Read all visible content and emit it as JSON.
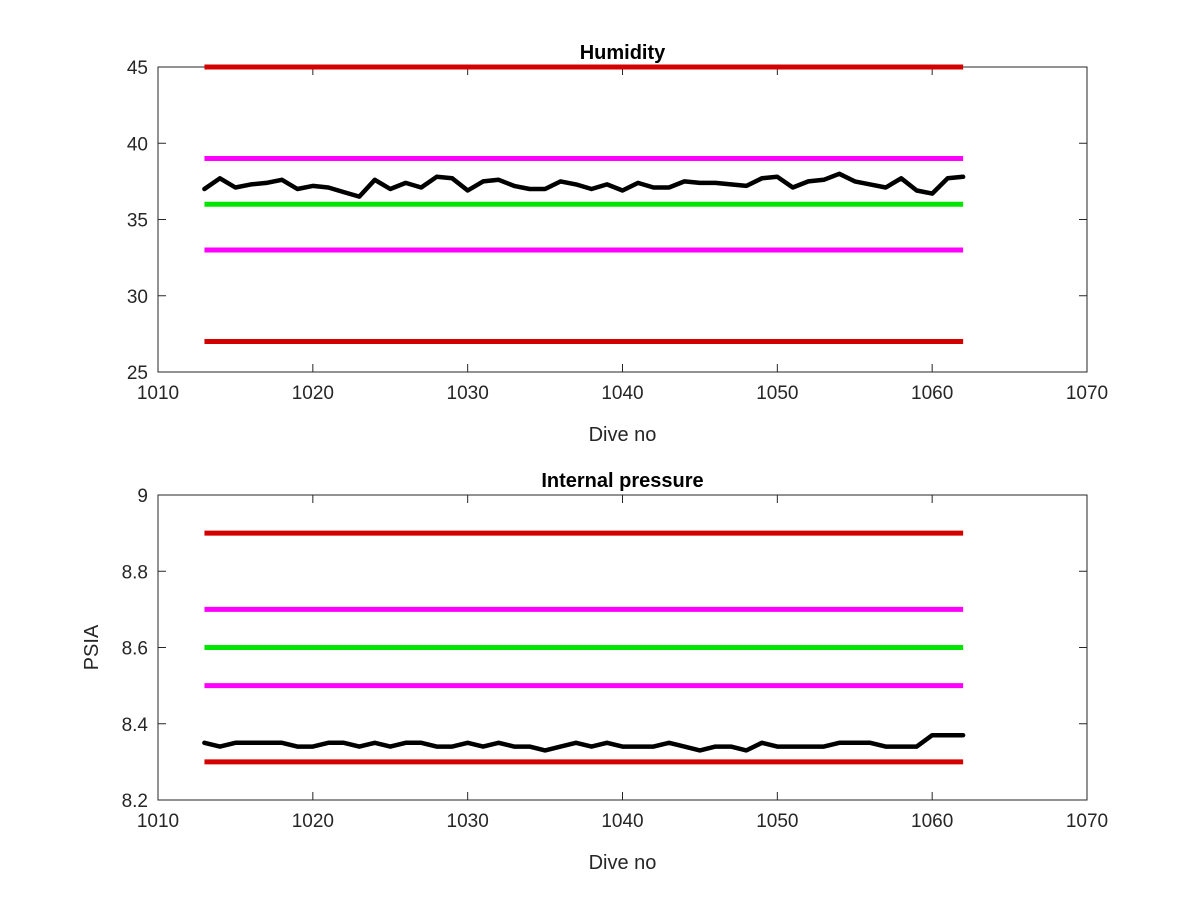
{
  "chart_data": [
    {
      "type": "line",
      "title": "Humidity",
      "xlabel": "Dive no",
      "ylabel": "",
      "xlim": [
        1010,
        1070
      ],
      "ylim": [
        25,
        45
      ],
      "xticks": [
        "1010",
        "1020",
        "1030",
        "1040",
        "1050",
        "1060",
        "1070"
      ],
      "yticks": [
        "25",
        "30",
        "35",
        "40",
        "45"
      ],
      "grid": false,
      "thresholds": [
        {
          "value": 45,
          "color": "#d40000",
          "x": [
            1013,
            1062
          ]
        },
        {
          "value": 39,
          "color": "#ff00ff",
          "x": [
            1013,
            1062
          ]
        },
        {
          "value": 36,
          "color": "#00e600",
          "x": [
            1013,
            1062
          ]
        },
        {
          "value": 33,
          "color": "#ff00ff",
          "x": [
            1013,
            1062
          ]
        },
        {
          "value": 27,
          "color": "#d40000",
          "x": [
            1013,
            1062
          ]
        }
      ],
      "series": [
        {
          "color": "#000000",
          "x": [
            1013,
            1014,
            1015,
            1016,
            1017,
            1018,
            1019,
            1020,
            1021,
            1022,
            1023,
            1024,
            1025,
            1026,
            1027,
            1028,
            1029,
            1030,
            1031,
            1032,
            1033,
            1034,
            1035,
            1036,
            1037,
            1038,
            1039,
            1040,
            1041,
            1042,
            1043,
            1044,
            1045,
            1046,
            1047,
            1048,
            1049,
            1050,
            1051,
            1052,
            1053,
            1054,
            1055,
            1056,
            1057,
            1058,
            1059,
            1060,
            1061,
            1062
          ],
          "values": [
            37.0,
            37.7,
            37.1,
            37.3,
            37.4,
            37.6,
            37.0,
            37.2,
            37.1,
            36.8,
            36.5,
            37.6,
            37.0,
            37.4,
            37.1,
            37.8,
            37.7,
            36.9,
            37.5,
            37.6,
            37.2,
            37.0,
            37.0,
            37.5,
            37.3,
            37.0,
            37.3,
            36.9,
            37.4,
            37.1,
            37.1,
            37.5,
            37.4,
            37.4,
            37.3,
            37.2,
            37.7,
            37.8,
            37.1,
            37.5,
            37.6,
            38.0,
            37.5,
            37.3,
            37.1,
            37.7,
            36.9,
            36.7,
            37.7,
            37.8
          ]
        }
      ]
    },
    {
      "type": "line",
      "title": "Internal pressure",
      "xlabel": "Dive no",
      "ylabel": "PSIA",
      "xlim": [
        1010,
        1070
      ],
      "ylim": [
        8.2,
        9.0
      ],
      "xticks": [
        "1010",
        "1020",
        "1030",
        "1040",
        "1050",
        "1060",
        "1070"
      ],
      "yticks": [
        "8.2",
        "8.4",
        "8.6",
        "8.8",
        "9"
      ],
      "grid": false,
      "thresholds": [
        {
          "value": 8.9,
          "color": "#d40000",
          "x": [
            1013,
            1062
          ]
        },
        {
          "value": 8.7,
          "color": "#ff00ff",
          "x": [
            1013,
            1062
          ]
        },
        {
          "value": 8.6,
          "color": "#00e600",
          "x": [
            1013,
            1062
          ]
        },
        {
          "value": 8.5,
          "color": "#ff00ff",
          "x": [
            1013,
            1062
          ]
        },
        {
          "value": 8.3,
          "color": "#d40000",
          "x": [
            1013,
            1062
          ]
        }
      ],
      "series": [
        {
          "color": "#000000",
          "x": [
            1013,
            1014,
            1015,
            1016,
            1017,
            1018,
            1019,
            1020,
            1021,
            1022,
            1023,
            1024,
            1025,
            1026,
            1027,
            1028,
            1029,
            1030,
            1031,
            1032,
            1033,
            1034,
            1035,
            1036,
            1037,
            1038,
            1039,
            1040,
            1041,
            1042,
            1043,
            1044,
            1045,
            1046,
            1047,
            1048,
            1049,
            1050,
            1051,
            1052,
            1053,
            1054,
            1055,
            1056,
            1057,
            1058,
            1059,
            1060,
            1061,
            1062
          ],
          "values": [
            8.35,
            8.34,
            8.35,
            8.35,
            8.35,
            8.35,
            8.34,
            8.34,
            8.35,
            8.35,
            8.34,
            8.35,
            8.34,
            8.35,
            8.35,
            8.34,
            8.34,
            8.35,
            8.34,
            8.35,
            8.34,
            8.34,
            8.33,
            8.34,
            8.35,
            8.34,
            8.35,
            8.34,
            8.34,
            8.34,
            8.35,
            8.34,
            8.33,
            8.34,
            8.34,
            8.33,
            8.35,
            8.34,
            8.34,
            8.34,
            8.34,
            8.35,
            8.35,
            8.35,
            8.34,
            8.34,
            8.34,
            8.37,
            8.37,
            8.37
          ]
        }
      ]
    }
  ]
}
